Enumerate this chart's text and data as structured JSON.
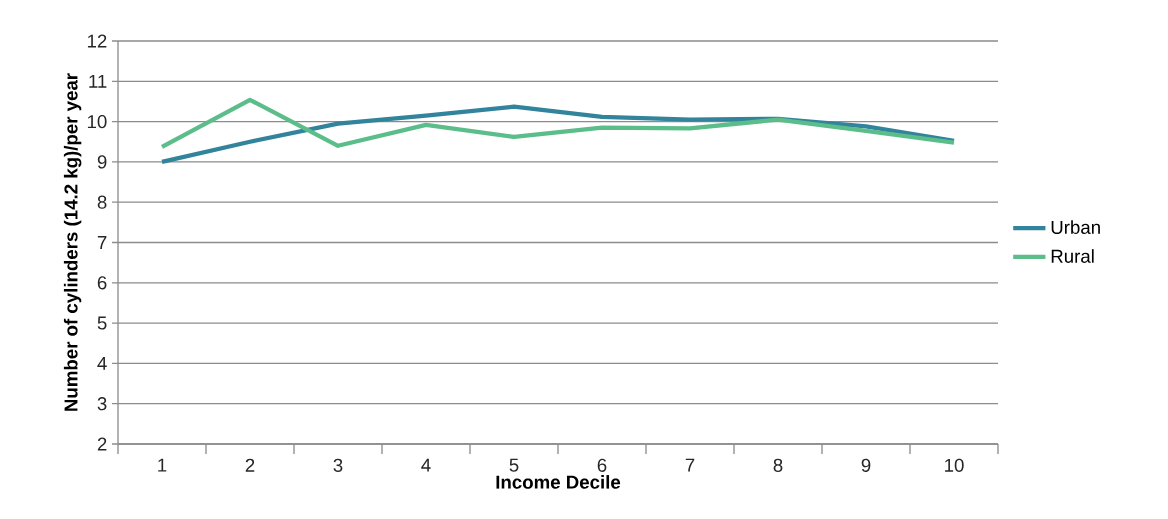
{
  "chart_data": {
    "type": "line",
    "xlabel": "Income Decile",
    "ylabel": "Number of cylinders (14.2 kg)/per year",
    "categories": [
      "1",
      "2",
      "3",
      "4",
      "5",
      "6",
      "7",
      "8",
      "9",
      "10"
    ],
    "series": [
      {
        "name": "Urban",
        "color": "#31849b",
        "values": [
          9.0,
          9.5,
          9.95,
          10.15,
          10.37,
          10.12,
          10.05,
          10.07,
          9.88,
          9.52
        ]
      },
      {
        "name": "Rural",
        "color": "#5bbd8a",
        "values": [
          9.37,
          10.54,
          9.4,
          9.92,
          9.62,
          9.85,
          9.83,
          10.05,
          9.77,
          9.48
        ]
      }
    ],
    "ylim": [
      2,
      12
    ],
    "yticks": [
      2,
      3,
      4,
      5,
      6,
      7,
      8,
      9,
      10,
      11,
      12
    ],
    "grid": "y",
    "legend": "right",
    "marker": "none",
    "line_style": "solid"
  }
}
